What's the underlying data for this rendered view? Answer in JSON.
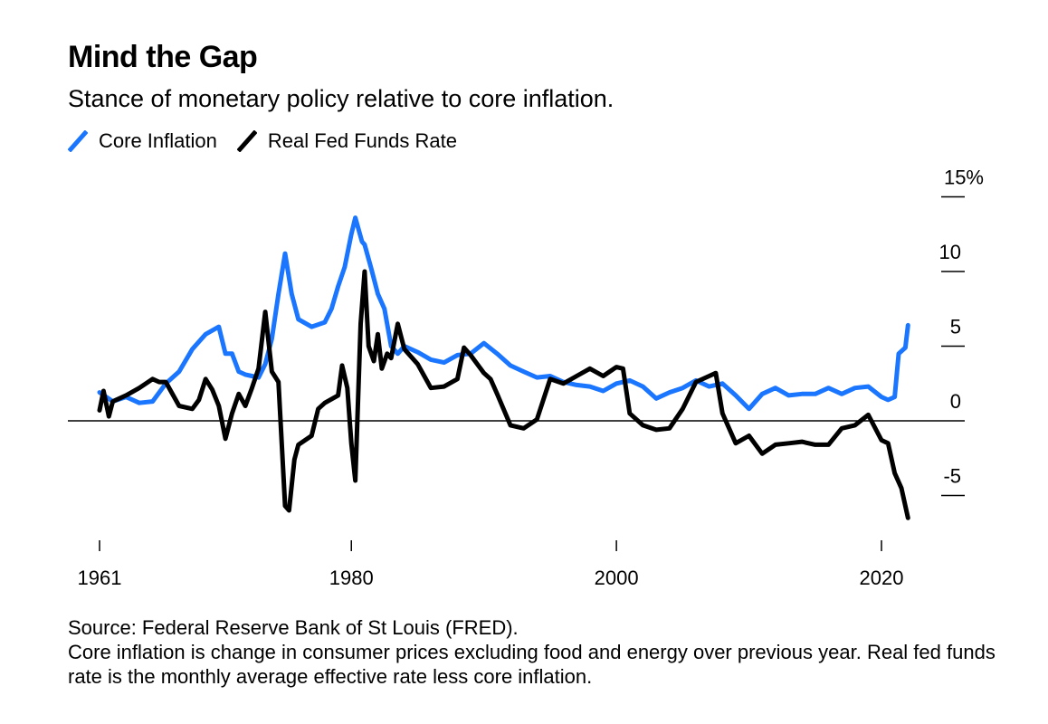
{
  "title": "Mind the Gap",
  "subtitle": "Stance of monetary policy relative to core inflation.",
  "colors": {
    "core_inflation": "#1a75ff",
    "real_fed_funds": "#000000",
    "zero_line": "#000000"
  },
  "footer": {
    "source": "Source: Federal Reserve Bank of St Louis (FRED).",
    "note": "Core inflation is change in consumer prices excluding food and energy over previous year. Real fed funds rate is the monthly average effective rate less core inflation."
  },
  "chart_data": {
    "type": "line",
    "title": "Mind the Gap",
    "xlim": [
      1961,
      2025
    ],
    "ylim": [
      -8,
      16
    ],
    "x_ticks": [
      1961,
      1980,
      2000,
      2020
    ],
    "x_tick_labels": [
      "1961",
      "1980",
      "2000",
      "2020"
    ],
    "y_ticks": [
      -5,
      0,
      5,
      10,
      15
    ],
    "y_tick_labels": [
      "-5",
      "0",
      "5",
      "10",
      "15%"
    ],
    "y_axis_position": "right",
    "zero_line": true,
    "legend_position": "top-left",
    "series": [
      {
        "name": "Core Inflation",
        "color": "#1a75ff",
        "points": [
          [
            1961.0,
            1.9
          ],
          [
            1962.0,
            1.3
          ],
          [
            1963.0,
            1.6
          ],
          [
            1964.0,
            1.2
          ],
          [
            1965.0,
            1.3
          ],
          [
            1966.0,
            2.5
          ],
          [
            1967.0,
            3.3
          ],
          [
            1968.0,
            4.8
          ],
          [
            1969.0,
            5.8
          ],
          [
            1970.0,
            6.3
          ],
          [
            1970.5,
            4.5
          ],
          [
            1971.0,
            4.5
          ],
          [
            1971.5,
            3.3
          ],
          [
            1972.0,
            3.1
          ],
          [
            1972.5,
            3.0
          ],
          [
            1973.0,
            2.9
          ],
          [
            1973.5,
            3.8
          ],
          [
            1974.0,
            5.5
          ],
          [
            1974.5,
            8.5
          ],
          [
            1975.0,
            11.2
          ],
          [
            1975.5,
            8.5
          ],
          [
            1976.0,
            6.8
          ],
          [
            1977.0,
            6.3
          ],
          [
            1978.0,
            6.6
          ],
          [
            1978.5,
            7.5
          ],
          [
            1979.0,
            9.0
          ],
          [
            1979.5,
            10.3
          ],
          [
            1980.0,
            12.5
          ],
          [
            1980.3,
            13.6
          ],
          [
            1980.8,
            12.0
          ],
          [
            1981.0,
            11.8
          ],
          [
            1981.5,
            10.2
          ],
          [
            1982.0,
            8.5
          ],
          [
            1982.5,
            7.5
          ],
          [
            1983.0,
            5.0
          ],
          [
            1983.5,
            4.5
          ],
          [
            1984.0,
            5.0
          ],
          [
            1985.0,
            4.6
          ],
          [
            1986.0,
            4.1
          ],
          [
            1987.0,
            3.9
          ],
          [
            1988.0,
            4.4
          ],
          [
            1989.0,
            4.5
          ],
          [
            1990.0,
            5.2
          ],
          [
            1991.0,
            4.5
          ],
          [
            1992.0,
            3.7
          ],
          [
            1993.0,
            3.3
          ],
          [
            1994.0,
            2.9
          ],
          [
            1995.0,
            3.0
          ],
          [
            1996.0,
            2.6
          ],
          [
            1997.0,
            2.4
          ],
          [
            1998.0,
            2.3
          ],
          [
            1999.0,
            2.0
          ],
          [
            2000.0,
            2.5
          ],
          [
            2001.0,
            2.7
          ],
          [
            2002.0,
            2.3
          ],
          [
            2003.0,
            1.5
          ],
          [
            2004.0,
            1.9
          ],
          [
            2005.0,
            2.2
          ],
          [
            2006.0,
            2.7
          ],
          [
            2007.0,
            2.3
          ],
          [
            2008.0,
            2.5
          ],
          [
            2009.0,
            1.7
          ],
          [
            2010.0,
            0.8
          ],
          [
            2011.0,
            1.8
          ],
          [
            2012.0,
            2.2
          ],
          [
            2013.0,
            1.7
          ],
          [
            2014.0,
            1.8
          ],
          [
            2015.0,
            1.8
          ],
          [
            2016.0,
            2.2
          ],
          [
            2017.0,
            1.8
          ],
          [
            2018.0,
            2.2
          ],
          [
            2019.0,
            2.3
          ],
          [
            2020.0,
            1.6
          ],
          [
            2020.5,
            1.4
          ],
          [
            2021.0,
            1.6
          ],
          [
            2021.3,
            4.5
          ],
          [
            2021.8,
            4.9
          ],
          [
            2022.0,
            6.4
          ]
        ]
      },
      {
        "name": "Real Fed Funds Rate",
        "color": "#000000",
        "points": [
          [
            1961.0,
            0.7
          ],
          [
            1961.3,
            2.0
          ],
          [
            1961.7,
            0.3
          ],
          [
            1962.0,
            1.3
          ],
          [
            1963.0,
            1.7
          ],
          [
            1964.0,
            2.2
          ],
          [
            1965.0,
            2.8
          ],
          [
            1965.5,
            2.6
          ],
          [
            1966.0,
            2.6
          ],
          [
            1967.0,
            1.0
          ],
          [
            1968.0,
            0.8
          ],
          [
            1968.5,
            1.4
          ],
          [
            1969.0,
            2.8
          ],
          [
            1969.5,
            2.1
          ],
          [
            1970.0,
            1.0
          ],
          [
            1970.5,
            -1.2
          ],
          [
            1971.0,
            0.5
          ],
          [
            1971.5,
            1.8
          ],
          [
            1972.0,
            1.0
          ],
          [
            1972.5,
            2.2
          ],
          [
            1973.0,
            3.5
          ],
          [
            1973.5,
            7.3
          ],
          [
            1974.0,
            3.3
          ],
          [
            1974.5,
            2.6
          ],
          [
            1975.0,
            -5.7
          ],
          [
            1975.3,
            -6.0
          ],
          [
            1975.7,
            -2.6
          ],
          [
            1976.0,
            -1.6
          ],
          [
            1977.0,
            -1.0
          ],
          [
            1977.5,
            0.8
          ],
          [
            1978.0,
            1.2
          ],
          [
            1979.0,
            1.7
          ],
          [
            1979.3,
            3.7
          ],
          [
            1979.7,
            2.2
          ],
          [
            1980.0,
            -1.5
          ],
          [
            1980.3,
            -4.0
          ],
          [
            1980.7,
            6.5
          ],
          [
            1981.0,
            10.0
          ],
          [
            1981.3,
            5.0
          ],
          [
            1981.7,
            4.0
          ],
          [
            1982.0,
            5.8
          ],
          [
            1982.3,
            3.5
          ],
          [
            1982.7,
            4.5
          ],
          [
            1983.0,
            4.2
          ],
          [
            1983.5,
            6.5
          ],
          [
            1984.0,
            4.8
          ],
          [
            1985.0,
            3.8
          ],
          [
            1985.5,
            3.0
          ],
          [
            1986.0,
            2.2
          ],
          [
            1987.0,
            2.3
          ],
          [
            1988.0,
            2.8
          ],
          [
            1988.5,
            4.9
          ],
          [
            1989.0,
            4.4
          ],
          [
            1990.0,
            3.2
          ],
          [
            1990.5,
            2.8
          ],
          [
            1991.0,
            1.8
          ],
          [
            1992.0,
            -0.3
          ],
          [
            1993.0,
            -0.5
          ],
          [
            1994.0,
            0.1
          ],
          [
            1995.0,
            2.8
          ],
          [
            1996.0,
            2.5
          ],
          [
            1997.0,
            3.0
          ],
          [
            1998.0,
            3.5
          ],
          [
            1999.0,
            3.0
          ],
          [
            2000.0,
            3.6
          ],
          [
            2000.5,
            3.5
          ],
          [
            2001.0,
            0.5
          ],
          [
            2002.0,
            -0.3
          ],
          [
            2003.0,
            -0.6
          ],
          [
            2004.0,
            -0.5
          ],
          [
            2005.0,
            0.8
          ],
          [
            2006.0,
            2.6
          ],
          [
            2007.0,
            3.0
          ],
          [
            2007.5,
            3.2
          ],
          [
            2008.0,
            0.5
          ],
          [
            2009.0,
            -1.5
          ],
          [
            2010.0,
            -1.0
          ],
          [
            2011.0,
            -2.2
          ],
          [
            2012.0,
            -1.6
          ],
          [
            2013.0,
            -1.5
          ],
          [
            2014.0,
            -1.4
          ],
          [
            2015.0,
            -1.6
          ],
          [
            2016.0,
            -1.6
          ],
          [
            2017.0,
            -0.5
          ],
          [
            2018.0,
            -0.3
          ],
          [
            2019.0,
            0.4
          ],
          [
            2020.0,
            -1.3
          ],
          [
            2020.5,
            -1.5
          ],
          [
            2021.0,
            -3.5
          ],
          [
            2021.5,
            -4.5
          ],
          [
            2022.0,
            -6.5
          ]
        ]
      }
    ]
  }
}
